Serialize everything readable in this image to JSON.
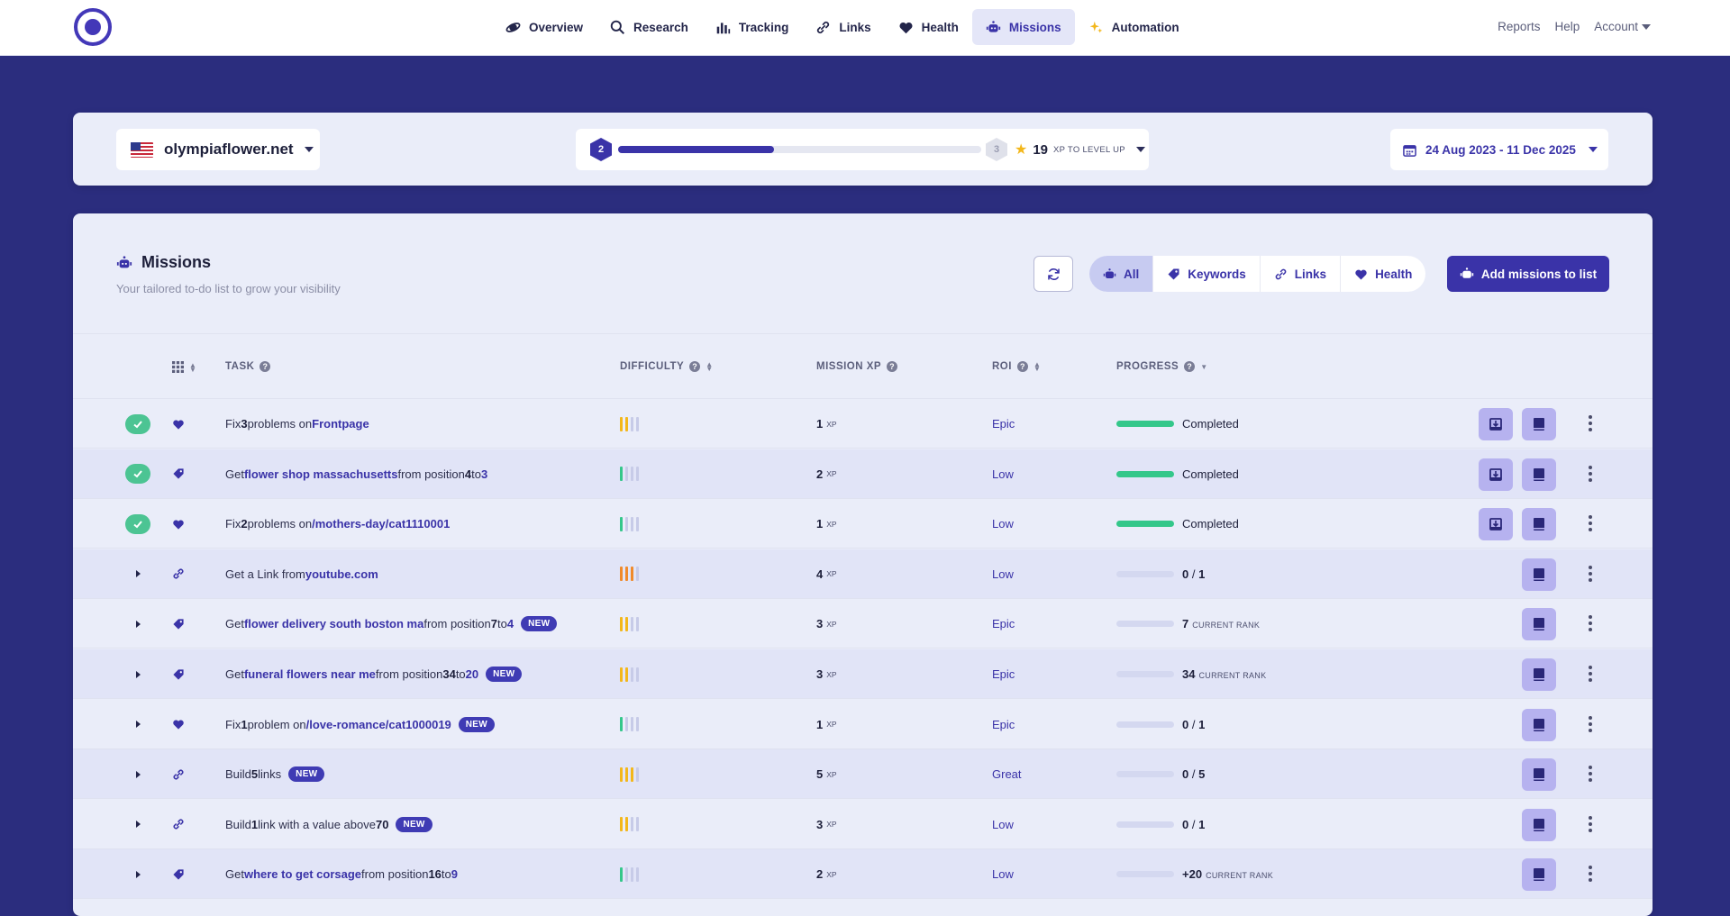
{
  "nav": {
    "items": [
      {
        "label": "Overview",
        "icon": "planet-icon"
      },
      {
        "label": "Research",
        "icon": "search-icon"
      },
      {
        "label": "Tracking",
        "icon": "bar-chart-icon"
      },
      {
        "label": "Links",
        "icon": "link-icon"
      },
      {
        "label": "Health",
        "icon": "heart-icon"
      },
      {
        "label": "Missions",
        "icon": "robot-icon",
        "active": true
      },
      {
        "label": "Automation",
        "icon": "sparkles-icon"
      }
    ],
    "right": {
      "reports": "Reports",
      "help": "Help",
      "account": "Account"
    }
  },
  "project": {
    "domain": "olympiaflower.net"
  },
  "level": {
    "current": "2",
    "next": "3",
    "xp_to_level": "19",
    "xp_label": "XP TO LEVEL UP",
    "progress": 0.43
  },
  "date_range": "24 Aug 2023 - 11 Dec 2025",
  "missions": {
    "title": "Missions",
    "subtitle": "Your tailored to-do list to grow your visibility",
    "filters": [
      "All",
      "Keywords",
      "Links",
      "Health"
    ],
    "add_button": "Add missions to list"
  },
  "table": {
    "headers": {
      "task": "TASK",
      "difficulty": "DIFFICULTY",
      "mission_xp": "MISSION XP",
      "roi": "ROI",
      "progress": "PROGRESS"
    },
    "xp_unit": "XP",
    "rows": [
      {
        "status": "done",
        "type": "health",
        "task": [
          "Fix ",
          {
            "b": "3"
          },
          " problems on ",
          {
            "hl": "Frontpage"
          }
        ],
        "new": false,
        "difficulty": 2,
        "diff_color": "#f3b71b",
        "xp": "1",
        "roi": "Epic",
        "progress_fill": 1,
        "progress_text": "Completed",
        "progress_kind": "done"
      },
      {
        "status": "done",
        "type": "keyword",
        "task": [
          "Get ",
          {
            "hl": "flower shop massachusetts"
          },
          " from position ",
          {
            "b": "4"
          },
          " to ",
          {
            "hl": "3"
          }
        ],
        "new": false,
        "difficulty": 1,
        "diff_color": "#34c78a",
        "xp": "2",
        "roi": "Low",
        "progress_fill": 1,
        "progress_text": "Completed",
        "progress_kind": "done"
      },
      {
        "status": "done",
        "type": "health",
        "task": [
          "Fix ",
          {
            "b": "2"
          },
          " problems on ",
          {
            "hl": "/mothers-day/cat1110001"
          }
        ],
        "new": false,
        "difficulty": 1,
        "diff_color": "#34c78a",
        "xp": "1",
        "roi": "Low",
        "progress_fill": 1,
        "progress_text": "Completed",
        "progress_kind": "done"
      },
      {
        "status": "open",
        "type": "link",
        "task": [
          "Get a Link from ",
          {
            "hl": "youtube.com"
          }
        ],
        "new": false,
        "difficulty": 3,
        "diff_color": "#f08a2b",
        "xp": "4",
        "roi": "Low",
        "progress_fill": 0,
        "progress_text": "0",
        "progress_total": "1",
        "progress_kind": "count"
      },
      {
        "status": "open",
        "type": "keyword",
        "task": [
          "Get ",
          {
            "hl": "flower delivery south boston ma"
          },
          " from position ",
          {
            "b": "7"
          },
          " to ",
          {
            "hl": "4"
          }
        ],
        "new": true,
        "difficulty": 2,
        "diff_color": "#f3b71b",
        "xp": "3",
        "roi": "Epic",
        "progress_fill": 0,
        "progress_text": "7",
        "progress_rank": "CURRENT RANK",
        "progress_kind": "rank"
      },
      {
        "status": "open",
        "type": "keyword",
        "task": [
          "Get ",
          {
            "hl": "funeral flowers near me"
          },
          " from position ",
          {
            "b": "34"
          },
          " to ",
          {
            "hl": "20"
          }
        ],
        "new": true,
        "difficulty": 2,
        "diff_color": "#f3b71b",
        "xp": "3",
        "roi": "Epic",
        "progress_fill": 0,
        "progress_text": "34",
        "progress_rank": "CURRENT RANK",
        "progress_kind": "rank"
      },
      {
        "status": "open",
        "type": "health",
        "task": [
          "Fix ",
          {
            "b": "1"
          },
          " problem on ",
          {
            "hl": "/love-romance/cat1000019"
          }
        ],
        "new": true,
        "difficulty": 1,
        "diff_color": "#34c78a",
        "xp": "1",
        "roi": "Epic",
        "progress_fill": 0,
        "progress_text": "0",
        "progress_total": "1",
        "progress_kind": "count"
      },
      {
        "status": "open",
        "type": "link",
        "task": [
          "Build ",
          {
            "b": "5"
          },
          " links"
        ],
        "new": true,
        "difficulty": 3,
        "diff_color": "#f3b71b",
        "xp": "5",
        "roi": "Great",
        "progress_fill": 0,
        "progress_text": "0",
        "progress_total": "5",
        "progress_kind": "count"
      },
      {
        "status": "open",
        "type": "link",
        "task": [
          "Build ",
          {
            "b": "1"
          },
          " link with a value above ",
          {
            "b": "70"
          }
        ],
        "new": true,
        "difficulty": 2,
        "diff_color": "#f3b71b",
        "xp": "3",
        "roi": "Low",
        "progress_fill": 0,
        "progress_text": "0",
        "progress_total": "1",
        "progress_kind": "count"
      },
      {
        "status": "open",
        "type": "keyword",
        "task": [
          "Get ",
          {
            "hl": "where to get corsage"
          },
          " from position ",
          {
            "b": "16"
          },
          " to ",
          {
            "hl": "9"
          }
        ],
        "new": false,
        "difficulty": 1,
        "diff_color": "#34c78a",
        "xp": "2",
        "roi": "Low",
        "progress_fill": 0,
        "progress_text": "+20",
        "progress_rank": "CURRENT RANK",
        "progress_kind": "rank"
      }
    ],
    "new_label": "NEW"
  },
  "colors": {
    "accent": "#3a33a8",
    "background": "#2b2d7e",
    "success": "#34c78a"
  }
}
